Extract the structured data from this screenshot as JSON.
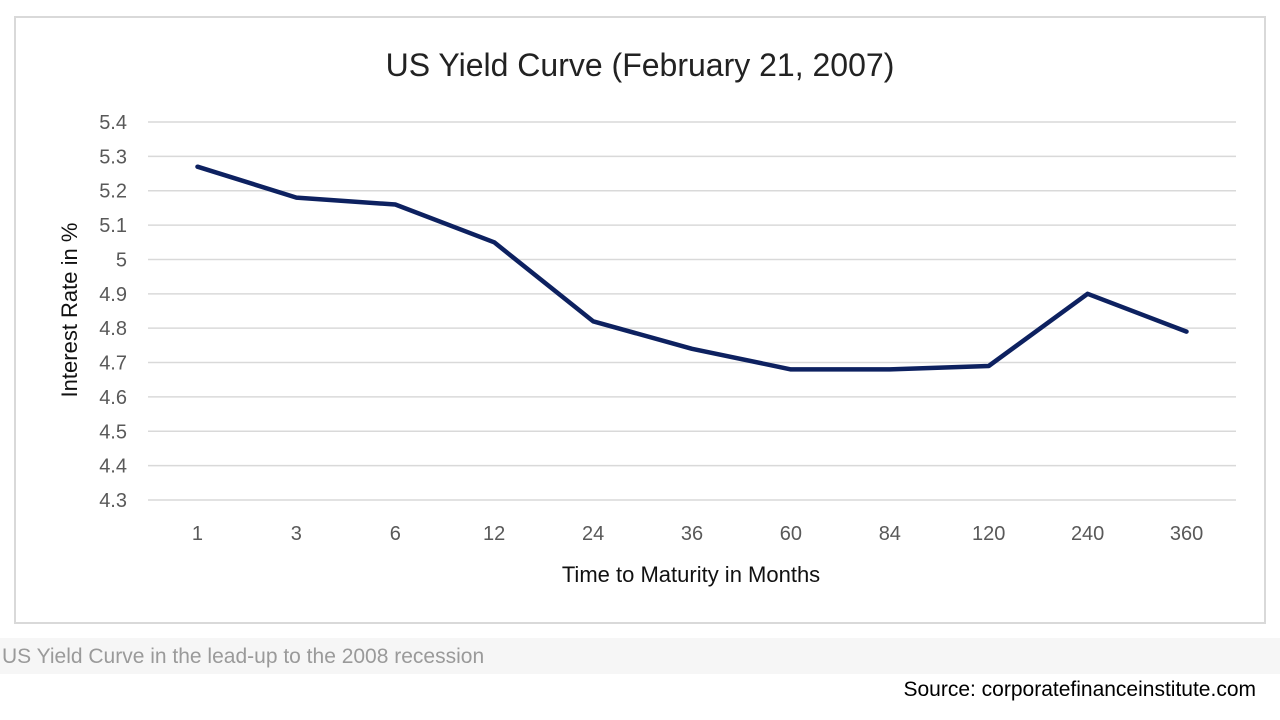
{
  "chart_data": {
    "type": "line",
    "title": "US Yield Curve (February 21, 2007)",
    "xlabel": "Time to Maturity in Months",
    "ylabel": "Interest Rate in %",
    "categories": [
      "1",
      "3",
      "6",
      "12",
      "24",
      "36",
      "60",
      "84",
      "120",
      "240",
      "360"
    ],
    "values": [
      5.27,
      5.18,
      5.16,
      5.05,
      4.82,
      4.74,
      4.68,
      4.68,
      4.69,
      4.9,
      4.79
    ],
    "yticks": [
      "5.4",
      "5.3",
      "5.2",
      "5.1",
      "5",
      "4.9",
      "4.8",
      "4.7",
      "4.6",
      "4.5",
      "4.4",
      "4.3"
    ],
    "ylim": [
      4.3,
      5.4
    ],
    "grid": true,
    "legend": "none",
    "line_color": "#0d2160"
  },
  "caption": "US Yield Curve in the lead-up to the 2008 recession",
  "source": "Source: corporatefinanceinstitute.com"
}
